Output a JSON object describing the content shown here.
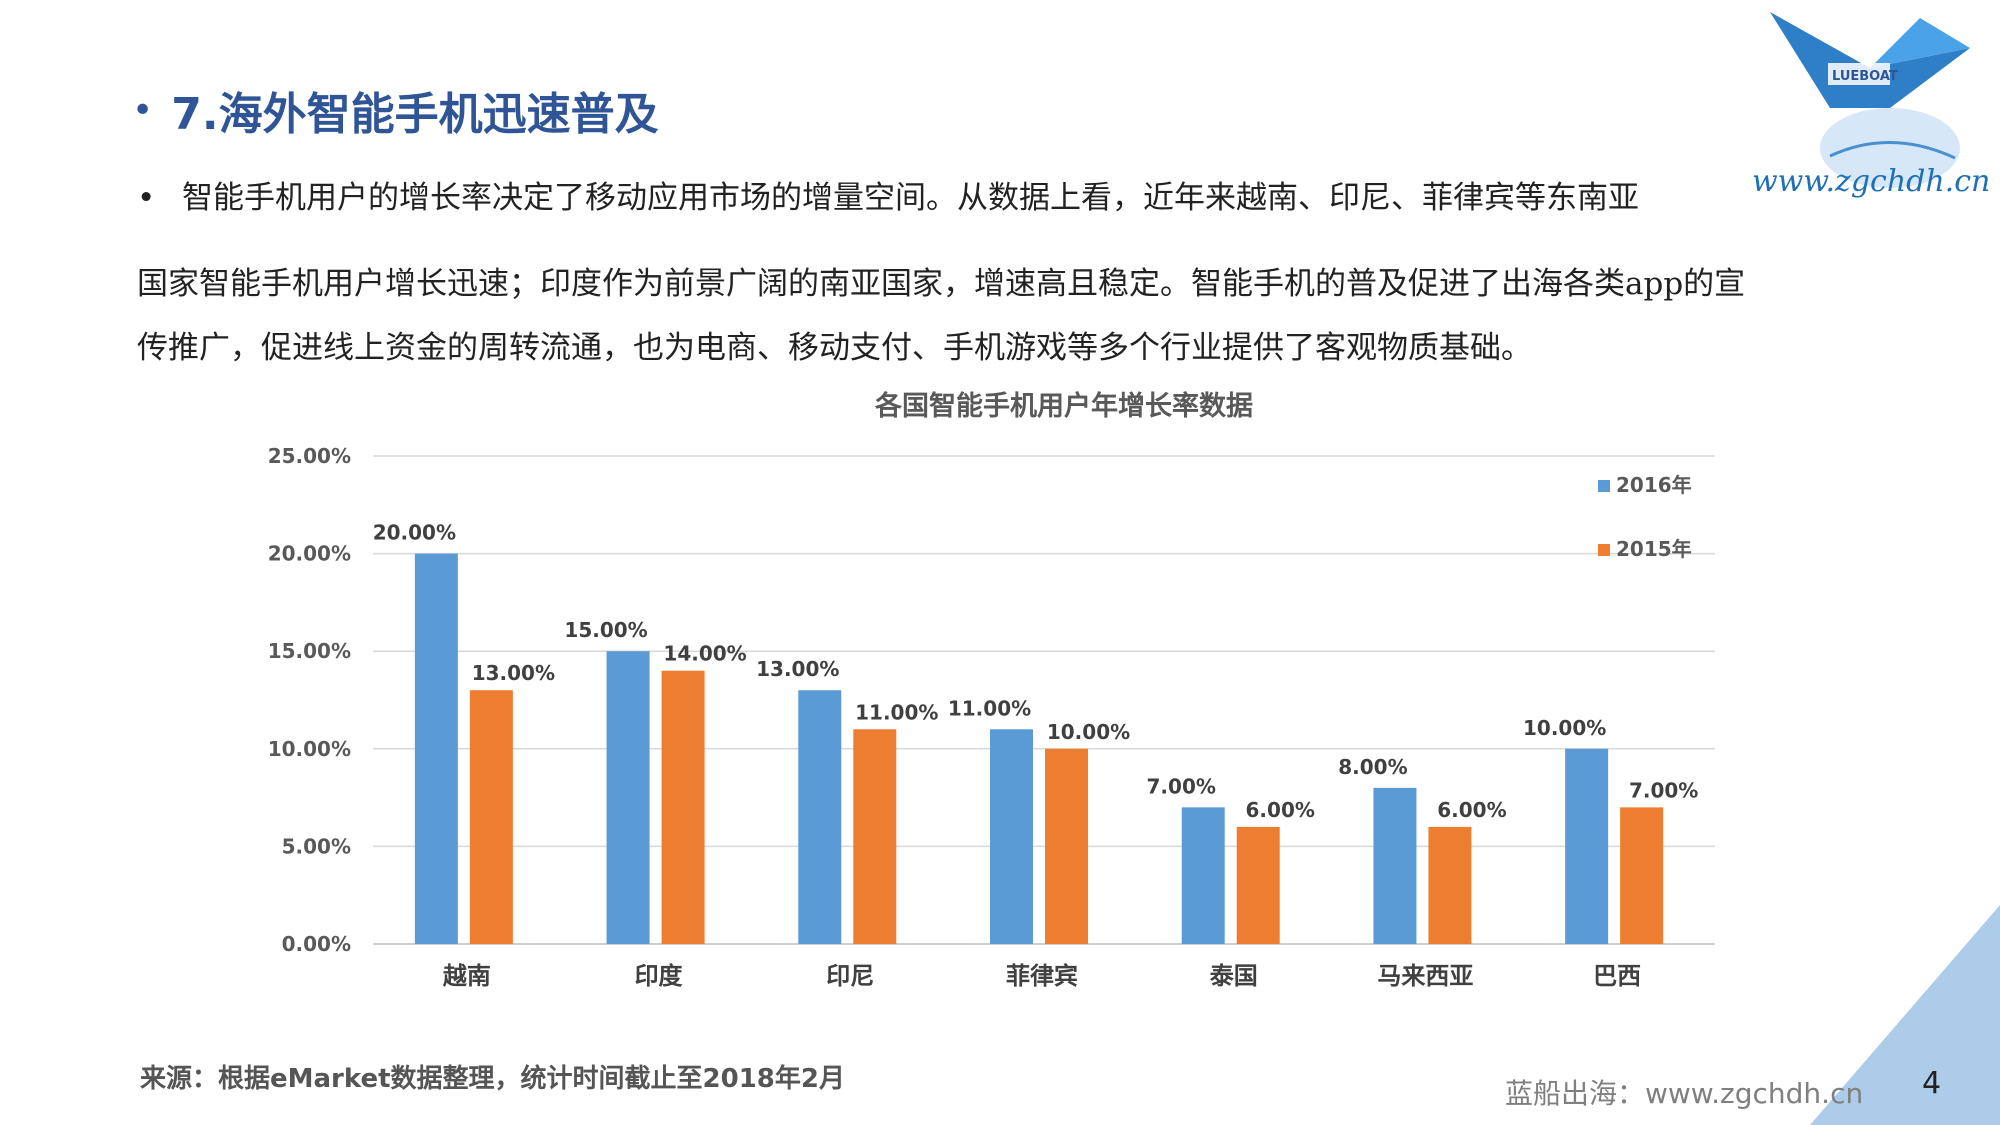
{
  "heading": {
    "bullet": "•",
    "title": "7.海外智能手机迅速普及"
  },
  "paragraph": {
    "bullet": "•",
    "line1": "智能手机用户的增长率决定了移动应用市场的增量空间。从数据上看，近年来越南、印尼、菲律宾等东南亚",
    "line2": "国家智能手机用户增长迅速；印度作为前景广阔的南亚国家，增速高且稳定。智能手机的普及促进了出海各类app的宣",
    "line3": "传推广，促进线上资金的周转流通，也为电商、移动支付、手机游戏等多个行业提供了客观物质基础。"
  },
  "logo": {
    "url_text": "www.zgchdh.cn",
    "brand_text": "LUEBOAT"
  },
  "chart_data": {
    "type": "bar",
    "title": "各国智能手机用户年增长率数据",
    "categories": [
      "越南",
      "印度",
      "印尼",
      "菲律宾",
      "泰国",
      "马来西亚",
      "巴西"
    ],
    "series": [
      {
        "name": "2016年",
        "color": "#5b9bd5",
        "values": [
          20,
          15,
          13,
          11,
          7,
          8,
          10
        ],
        "labels": [
          "20.00%",
          "15.00%",
          "13.00%",
          "11.00%",
          "7.00%",
          "8.00%",
          "10.00%"
        ]
      },
      {
        "name": "2015年",
        "color": "#ed7d31",
        "values": [
          13,
          14,
          11,
          10,
          6,
          6,
          7
        ],
        "labels": [
          "13.00%",
          "14.00%",
          "11.00%",
          "10.00%",
          "6.00%",
          "6.00%",
          "7.00%"
        ]
      }
    ],
    "yticks": [
      "0.00%",
      "5.00%",
      "10.00%",
      "15.00%",
      "20.00%",
      "25.00%"
    ],
    "ylim": [
      0,
      25
    ],
    "grid": true,
    "legend": "top-right"
  },
  "source": "来源：根据eMarket数据整理，统计时间截止至2018年2月",
  "footer": {
    "brand": "蓝船出海：www.zgchdh.cn",
    "page": "4"
  },
  "colors": {
    "title": "#2f5597",
    "accent_triangle": "#9dc3e6"
  }
}
